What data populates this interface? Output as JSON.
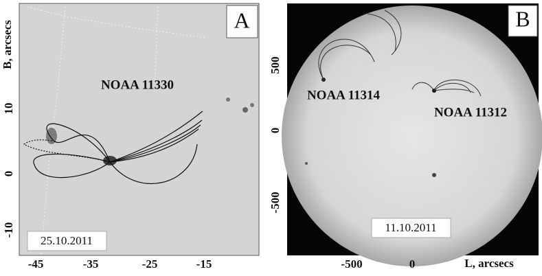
{
  "panels": [
    {
      "letter": "A",
      "y_axis_label": "B, arcsecs",
      "yticks": [
        10,
        0,
        -10
      ],
      "xticks": [
        -45,
        -35,
        -25,
        -15
      ],
      "annotations": [
        "NOAA 11330"
      ],
      "date": "25.10.2011"
    },
    {
      "letter": "B",
      "x_axis_label": "L, arcsecs",
      "yticks": [
        500,
        0,
        -500
      ],
      "xticks": [
        -500,
        0
      ],
      "annotations": [
        "NOAA 11314",
        "NOAA 11312"
      ],
      "date": "11.10.2011"
    }
  ]
}
